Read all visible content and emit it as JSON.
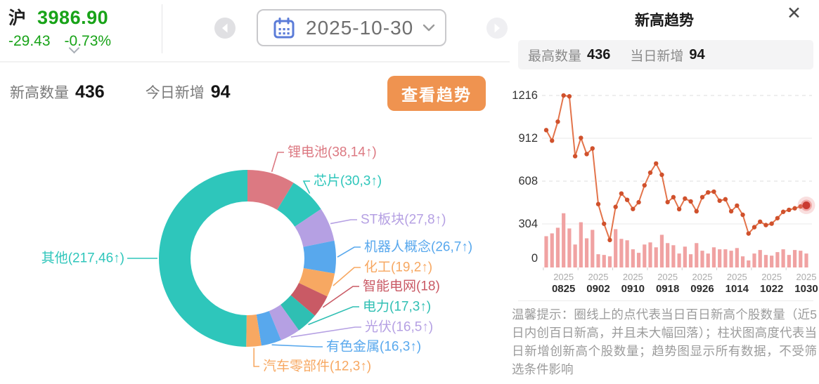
{
  "header": {
    "market_label": "沪",
    "index_value": "3986.90",
    "change": "-29.43",
    "change_pct": "-0.73%",
    "index_color": "#18A318"
  },
  "date_nav": {
    "date": "2025-10-30"
  },
  "stats": {
    "new_high_label": "新高数量",
    "new_high_value": "436",
    "today_new_label": "今日新增",
    "today_new_value": "94",
    "view_trend_button": "查看趋势",
    "button_color": "#EF9350"
  },
  "panel": {
    "title": "新高趋势",
    "max_label": "最高数量",
    "max_value": "436",
    "day_new_label": "当日新增",
    "day_new_value": "94",
    "tip": "温馨提示：圈线上的点代表当日百日新高个股数量（近5日内创百日新高，并且未大幅回落）；柱状图高度代表当日新增创新高个股数量；趋势图显示所有数据，不受筛选条件影响"
  },
  "chart_data": [
    {
      "type": "pie",
      "donut": true,
      "total": 436,
      "labels": [
        "锂电池",
        "芯片",
        "ST板块",
        "机器人概念",
        "化工",
        "智能电网",
        "电力",
        "光伏",
        "有色金属",
        "汽车零部件",
        "其他"
      ],
      "values": [
        38,
        30,
        27,
        26,
        19,
        18,
        17,
        16,
        16,
        12,
        217
      ],
      "new_today": [
        14,
        3,
        8,
        7,
        2,
        null,
        3,
        5,
        3,
        3,
        46
      ],
      "display_labels": [
        "锂电池(38,14↑)",
        "芯片(30,3↑)",
        "ST板块(27,8↑)",
        "机器人概念(26,7↑)",
        "化工(19,2↑)",
        "智能电网(18)",
        "电力(17,3↑)",
        "光伏(16,5↑)",
        "有色金属(16,3↑)",
        "汽车零部件(12,3↑)",
        "其他(217,46↑)"
      ],
      "colors": [
        "#DC7982",
        "#2EC6BB",
        "#B5A0E3",
        "#58A8ED",
        "#F7A862",
        "#C95A65",
        "#2FBFB3",
        "#B5A0E3",
        "#58A8ED",
        "#F7A862",
        "#2EC6BB"
      ],
      "start_angle": "top-clockwise"
    },
    {
      "type": "line",
      "title": "新高趋势",
      "ylim": [
        0,
        1216
      ],
      "yticks": [
        0,
        304,
        608,
        912,
        1216
      ],
      "grid": "horizontal",
      "x_tick_indices": [
        3,
        9,
        15,
        21,
        27,
        33,
        39,
        45
      ],
      "x_tick_labels": [
        {
          "year": "2025",
          "date": "0825"
        },
        {
          "year": "2025",
          "date": "0902"
        },
        {
          "year": "2025",
          "date": "0910"
        },
        {
          "year": "2025",
          "date": "0918"
        },
        {
          "year": "2025",
          "date": "0926"
        },
        {
          "year": "2025",
          "date": "1014"
        },
        {
          "year": "2025",
          "date": "1022"
        },
        {
          "year": "2025",
          "date": "1030"
        }
      ],
      "series": [
        {
          "name": "当日百日新高个股数量",
          "kind": "line",
          "values": [
            970,
            895,
            1030,
            1216,
            1210,
            785,
            915,
            800,
            840,
            445,
            305,
            190,
            425,
            520,
            475,
            410,
            458,
            578,
            668,
            733,
            653,
            459,
            494,
            409,
            484,
            464,
            394,
            494,
            528,
            533,
            469,
            479,
            394,
            434,
            369,
            236,
            281,
            320,
            296,
            306,
            345,
            390,
            404,
            415,
            428,
            436
          ]
        },
        {
          "name": "当日新增创新高个股数量",
          "kind": "bar",
          "values": [
            217,
            237,
            277,
            380,
            272,
            158,
            316,
            202,
            262,
            89,
            84,
            74,
            267,
            198,
            188,
            124,
            99,
            158,
            173,
            138,
            227,
            168,
            153,
            94,
            143,
            89,
            168,
            114,
            94,
            138,
            124,
            124,
            114,
            133,
            74,
            45,
            94,
            119,
            84,
            79,
            104,
            124,
            84,
            119,
            114,
            94
          ]
        }
      ],
      "line_color": "#E3744B",
      "dot_color": "#D0512C",
      "bar_color": "#F0A2A2",
      "last_dot_color": "#C93A31",
      "highlight_last_point": true
    }
  ]
}
